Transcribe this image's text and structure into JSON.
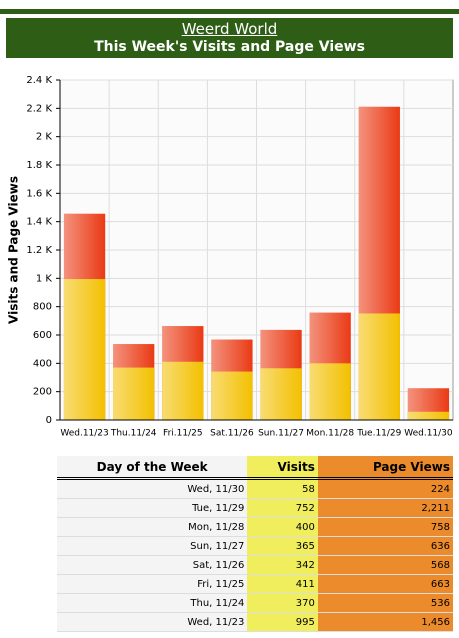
{
  "header": {
    "site": "Weerd World",
    "title": "This Week's Visits and Page Views"
  },
  "chart_data": {
    "type": "bar",
    "ylabel": "Visits and Page Views",
    "categories": [
      "Wed.11/23",
      "Thu.11/24",
      "Fri.11/25",
      "Sat.11/26",
      "Sun.11/27",
      "Mon.11/28",
      "Tue.11/29",
      "Wed.11/30"
    ],
    "series": [
      {
        "name": "Page Views",
        "color": "#ea3a14",
        "values": [
          1456,
          536,
          663,
          568,
          636,
          758,
          2211,
          224
        ]
      },
      {
        "name": "Visits",
        "color": "#f3c000",
        "values": [
          995,
          370,
          411,
          342,
          365,
          400,
          752,
          58
        ]
      }
    ],
    "ylim": [
      0,
      2400
    ],
    "yticks": [
      0,
      200,
      400,
      600,
      800,
      {
        "value": 1000,
        "label": "1 K"
      },
      {
        "value": 1200,
        "label": "1.2 K"
      },
      {
        "value": 1400,
        "label": "1.4 K"
      },
      {
        "value": 1600,
        "label": "1.6 K"
      },
      {
        "value": 1800,
        "label": "1.8 K"
      },
      {
        "value": 2000,
        "label": "2 K"
      },
      {
        "value": 2200,
        "label": "2.2 K"
      },
      {
        "value": 2400,
        "label": "2.4 K"
      }
    ],
    "grid": true
  },
  "table": {
    "header": [
      "Day of the Week",
      "Visits",
      "Page Views"
    ],
    "rows": [
      [
        "Wed, 11/30",
        "58",
        "224"
      ],
      [
        "Tue, 11/29",
        "752",
        "2,211"
      ],
      [
        "Mon, 11/28",
        "400",
        "758"
      ],
      [
        "Sun, 11/27",
        "365",
        "636"
      ],
      [
        "Sat, 11/26",
        "342",
        "568"
      ],
      [
        "Fri, 11/25",
        "411",
        "663"
      ],
      [
        "Thu, 11/24",
        "370",
        "536"
      ],
      [
        "Wed, 11/23",
        "995",
        "1,456"
      ]
    ]
  }
}
